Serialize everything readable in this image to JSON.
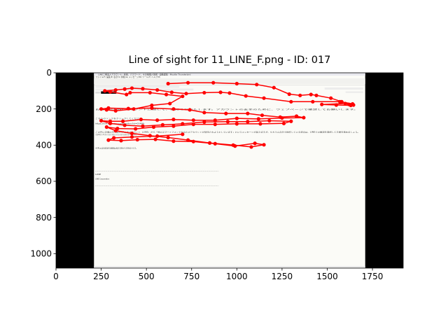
{
  "chart_data": {
    "type": "scatter",
    "title": "Line of sight for 11_LINE_F.png - ID: 017",
    "xlabel": "",
    "ylabel": "",
    "xlim": [
      0,
      1920
    ],
    "ylim": [
      1080,
      0
    ],
    "y_inverted": true,
    "x_ticks": [
      "0",
      "250",
      "500",
      "750",
      "1000",
      "1250",
      "1500",
      "1750"
    ],
    "y_ticks": [
      "0",
      "200",
      "400",
      "600",
      "800",
      "1000"
    ],
    "background_image": {
      "extent_x": [
        0,
        1920
      ],
      "extent_y": [
        1080,
        0
      ],
      "content_x": [
        210,
        1710
      ],
      "window_title": "LINE二重本人アカウント - 名前、パスワード、その他個人情報 - 自動返信 - Mozilla Thunderbird",
      "menu": "ファイル(F)  編集(E)  表示(V)  移動(G)  メッセージ(M)  ツール(T)  ヘルプ(H)",
      "body_lines": [
        "お客様のLINEアカウントに関して、お知らせいたします。アカウントの安全のために、ウェブページで確認してお願いします。",
        "こちらのリンクをクリックしてください。",
        "https://line.me/ja/account/confirm?id=0149fk",
        "この件に記載のURLはLINE公式アカウント（LINE）から「他のスマートフォンであなたのアカウントが使用されようとしています」というメッセージが届きますが、もちろん自分で操作している場合は、LINEでの確認を選択して手順を進めましょう。",
        "※URLの安全認証有効期限は毎日日時から15時までです。",
        "LINE",
        "LINE Corporation"
      ]
    },
    "series": [
      {
        "color": "#ff0000",
        "points": [
          [
            620,
            60
          ],
          [
            730,
            55
          ],
          [
            870,
            55
          ],
          [
            1000,
            60
          ],
          [
            1110,
            65
          ],
          [
            1205,
            82
          ],
          [
            1290,
            118
          ],
          [
            1350,
            125
          ],
          [
            1410,
            120
          ],
          [
            1440,
            125
          ],
          [
            1520,
            140
          ],
          [
            1580,
            160
          ],
          [
            1620,
            175
          ],
          [
            1645,
            178
          ],
          [
            1600,
            170
          ],
          [
            1470,
            175
          ],
          [
            1550,
            178
          ],
          [
            1630,
            180
          ],
          [
            1640,
            172
          ],
          [
            1570,
            160
          ],
          [
            1420,
            160
          ],
          [
            1300,
            160
          ],
          [
            1150,
            140
          ],
          [
            1050,
            128
          ],
          [
            960,
            112
          ],
          [
            910,
            108
          ],
          [
            820,
            110
          ],
          [
            720,
            115
          ],
          [
            640,
            108
          ],
          [
            560,
            95
          ],
          [
            480,
            88
          ],
          [
            420,
            85
          ],
          [
            380,
            90
          ],
          [
            330,
            95
          ],
          [
            270,
            100
          ],
          [
            300,
            105
          ],
          [
            390,
            120
          ],
          [
            410,
            110
          ],
          [
            520,
            110
          ],
          [
            610,
            120
          ],
          [
            700,
            130
          ],
          [
            630,
            170
          ],
          [
            530,
            180
          ],
          [
            430,
            200
          ],
          [
            330,
            210
          ],
          [
            280,
            205
          ],
          [
            250,
            200
          ],
          [
            290,
            195
          ],
          [
            400,
            198
          ],
          [
            530,
            195
          ],
          [
            650,
            200
          ],
          [
            740,
            205
          ],
          [
            820,
            220
          ],
          [
            940,
            225
          ],
          [
            1060,
            225
          ],
          [
            1140,
            235
          ],
          [
            1240,
            245
          ],
          [
            1330,
            240
          ],
          [
            1370,
            248
          ],
          [
            1250,
            250
          ],
          [
            1120,
            255
          ],
          [
            1000,
            252
          ],
          [
            880,
            262
          ],
          [
            760,
            262
          ],
          [
            650,
            258
          ],
          [
            560,
            262
          ],
          [
            470,
            258
          ],
          [
            370,
            268
          ],
          [
            300,
            268
          ],
          [
            250,
            265
          ],
          [
            300,
            280
          ],
          [
            380,
            290
          ],
          [
            480,
            295
          ],
          [
            590,
            288
          ],
          [
            700,
            282
          ],
          [
            820,
            272
          ],
          [
            950,
            270
          ],
          [
            1060,
            270
          ],
          [
            1180,
            265
          ],
          [
            1300,
            268
          ],
          [
            1260,
            280
          ],
          [
            1130,
            282
          ],
          [
            1000,
            282
          ],
          [
            880,
            285
          ],
          [
            760,
            285
          ],
          [
            650,
            295
          ],
          [
            540,
            300
          ],
          [
            440,
            310
          ],
          [
            340,
            308
          ],
          [
            280,
            300
          ],
          [
            330,
            320
          ],
          [
            420,
            335
          ],
          [
            520,
            348
          ],
          [
            620,
            358
          ],
          [
            730,
            372
          ],
          [
            850,
            388
          ],
          [
            980,
            400
          ],
          [
            1080,
            410
          ],
          [
            1150,
            398
          ],
          [
            1100,
            390
          ],
          [
            990,
            405
          ],
          [
            880,
            392
          ],
          [
            760,
            380
          ],
          [
            650,
            378
          ],
          [
            550,
            368
          ],
          [
            450,
            370
          ],
          [
            360,
            375
          ],
          [
            290,
            372
          ],
          [
            320,
            360
          ],
          [
            420,
            355
          ],
          [
            560,
            350
          ],
          [
            700,
            340
          ]
        ]
      }
    ]
  }
}
